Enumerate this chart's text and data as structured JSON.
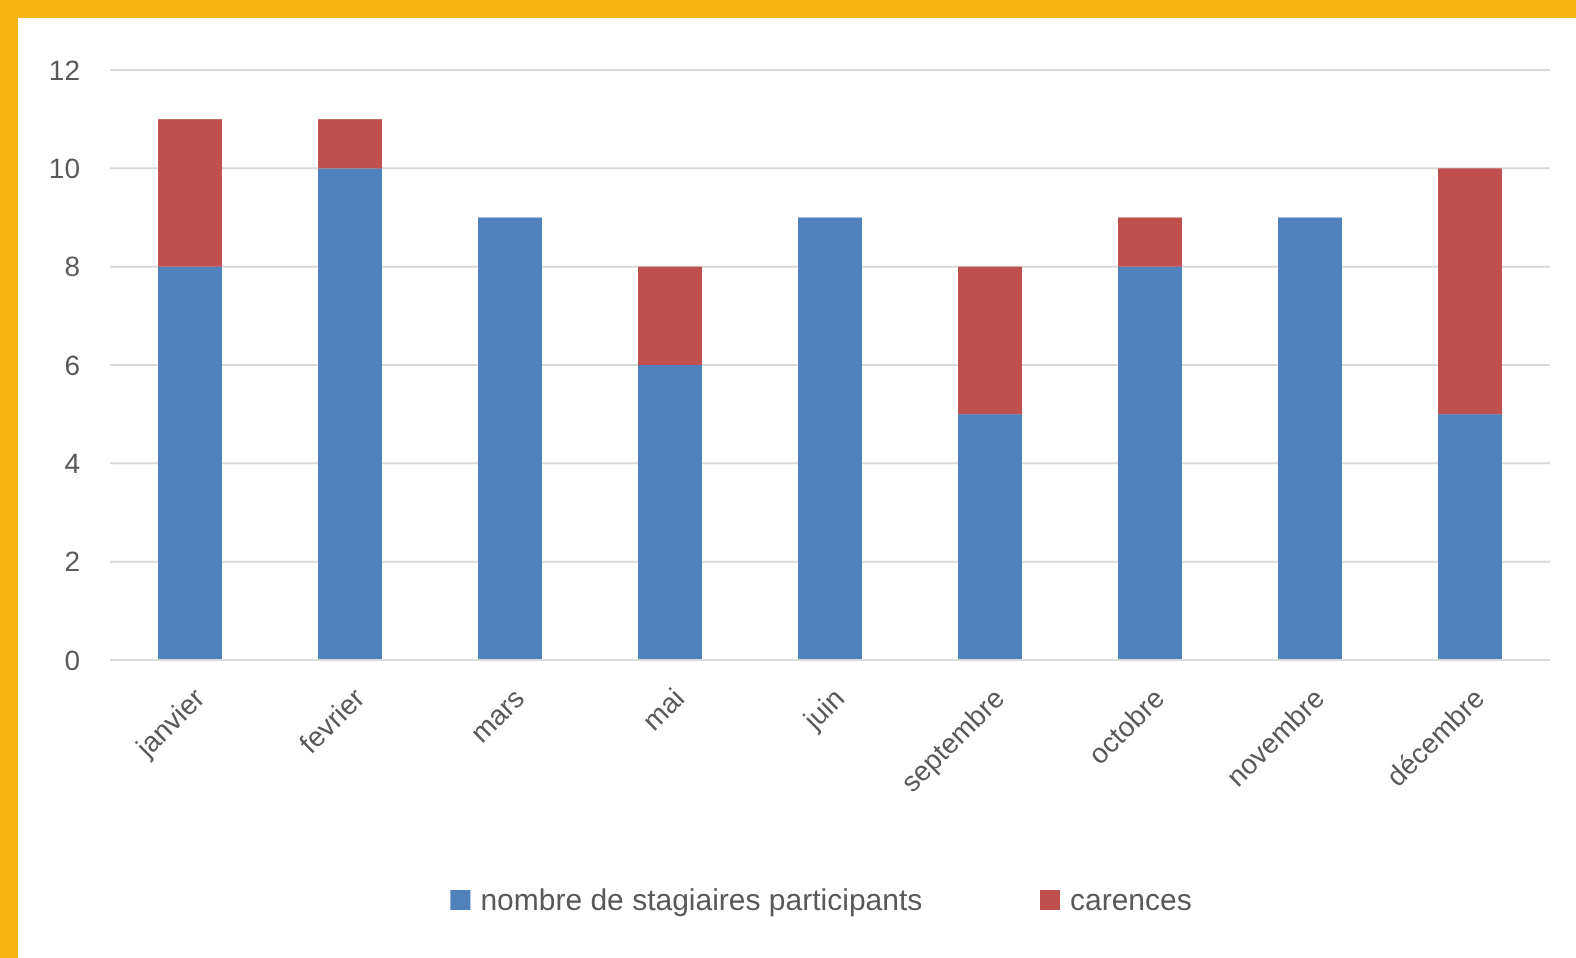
{
  "chart_data": {
    "type": "bar",
    "stacked": true,
    "categories": [
      "janvier",
      "fevrier",
      "mars",
      "mai",
      "juin",
      "septembre",
      "octobre",
      "novembre",
      "décembre"
    ],
    "series": [
      {
        "name": "nombre de stagiaires participants",
        "color": "#4f81bd",
        "values": [
          8,
          10,
          9,
          6,
          9,
          5,
          8,
          9,
          5
        ]
      },
      {
        "name": "carences",
        "color": "#c0504d",
        "values": [
          3,
          1,
          0,
          2,
          0,
          3,
          1,
          0,
          5
        ]
      }
    ],
    "ylim": [
      0,
      12
    ],
    "yticks": [
      0,
      2,
      4,
      6,
      8,
      10,
      12
    ],
    "grid": "y",
    "legend": "bottom"
  }
}
